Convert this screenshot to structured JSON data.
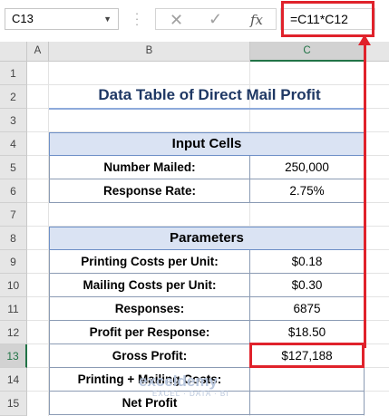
{
  "formula_bar": {
    "name_box": "C13",
    "formula": "=C11*C12"
  },
  "columns": [
    "A",
    "B",
    "C"
  ],
  "rows": [
    "1",
    "2",
    "3",
    "4",
    "5",
    "6",
    "7",
    "8",
    "9",
    "10",
    "11",
    "12",
    "13",
    "14",
    "15"
  ],
  "sheet": {
    "title": "Data Table of Direct Mail Profit",
    "input_cells": {
      "header": "Input Cells",
      "items": [
        {
          "label": "Number Mailed:",
          "value": "250,000"
        },
        {
          "label": "Response Rate:",
          "value": "2.75%"
        }
      ]
    },
    "parameters": {
      "header": "Parameters",
      "items": [
        {
          "label": "Printing Costs per Unit:",
          "value": "$0.18"
        },
        {
          "label": "Mailing Costs per Unit:",
          "value": "$0.30"
        },
        {
          "label": "Responses:",
          "value": "6875"
        },
        {
          "label": "Profit per Response:",
          "value": "$18.50"
        },
        {
          "label": "Gross Profit:",
          "value": "$127,188"
        },
        {
          "label": "Printing + Mailing Costs:",
          "value": ""
        },
        {
          "label": "Net Profit",
          "value": ""
        }
      ]
    }
  },
  "watermark": {
    "name": "exceldemy",
    "tagline": "EXCEL · DATA · BI"
  },
  "colors": {
    "accent_red": "#e0222b",
    "header_fill": "#dae3f3",
    "title": "#1f3864"
  }
}
